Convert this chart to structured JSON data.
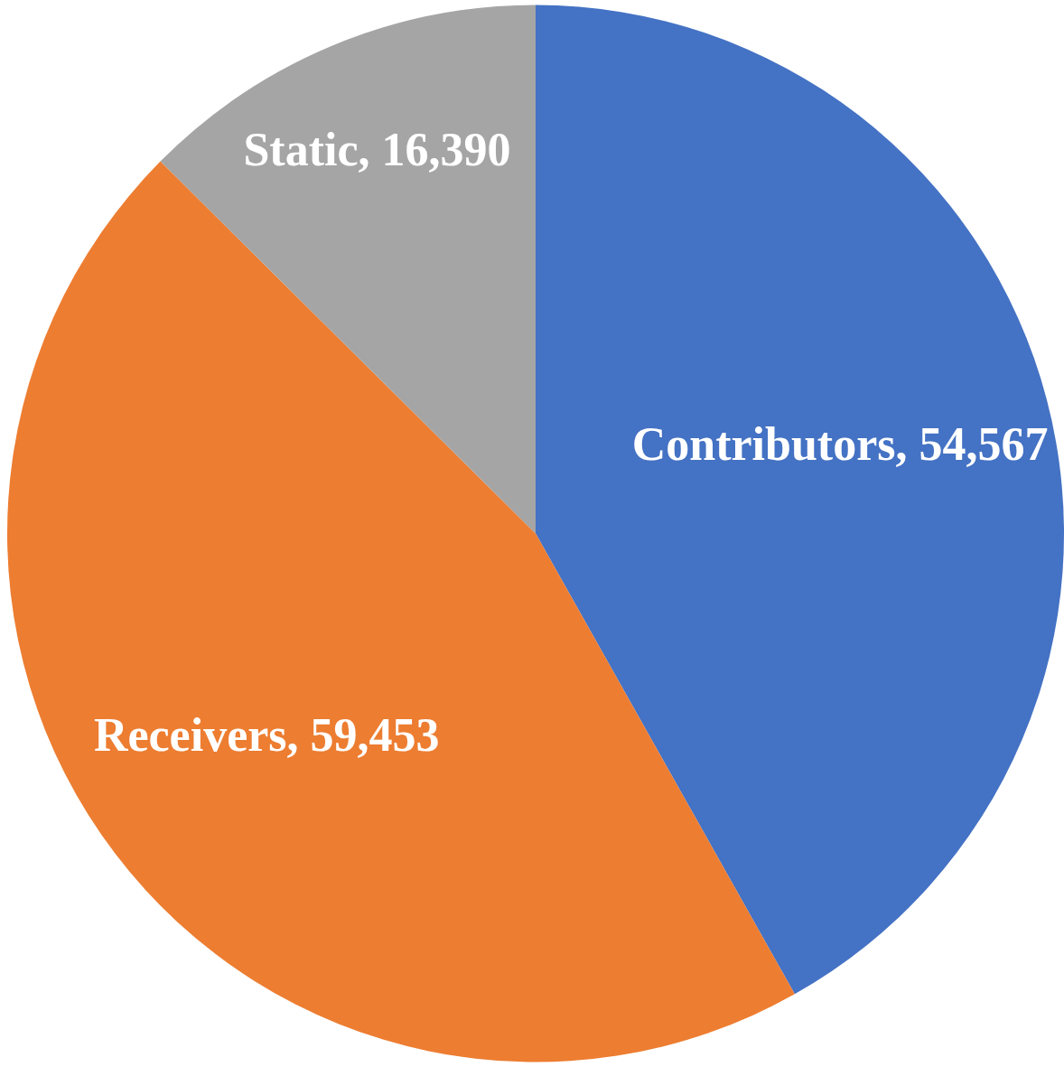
{
  "chart_data": {
    "type": "pie",
    "categories": [
      "Contributors",
      "Receivers",
      "Static"
    ],
    "values": [
      54567,
      59453,
      16390
    ],
    "value_labels": [
      "54,567",
      "59,453",
      "16,390"
    ],
    "colors": [
      "#4472c4",
      "#ed7d31",
      "#a5a5a5"
    ],
    "legend": false
  }
}
